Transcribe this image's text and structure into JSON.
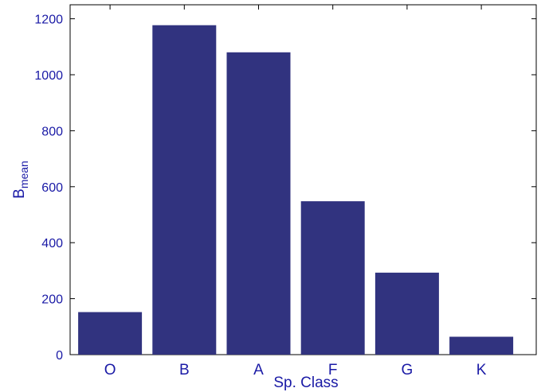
{
  "chart_data": {
    "type": "bar",
    "categories": [
      "O",
      "B",
      "A",
      "F",
      "G",
      "K"
    ],
    "values": [
      152,
      1177,
      1080,
      548,
      293,
      64
    ],
    "xlabel": "Sp. Class",
    "ylabel_main": "B",
    "ylabel_sub": "mean",
    "ylim": [
      0,
      1250
    ],
    "yticks": [
      0,
      200,
      400,
      600,
      800,
      1000,
      1200
    ],
    "grid": false,
    "bar_color": "#31337f",
    "axis_text_color": "#1a1aa6"
  }
}
